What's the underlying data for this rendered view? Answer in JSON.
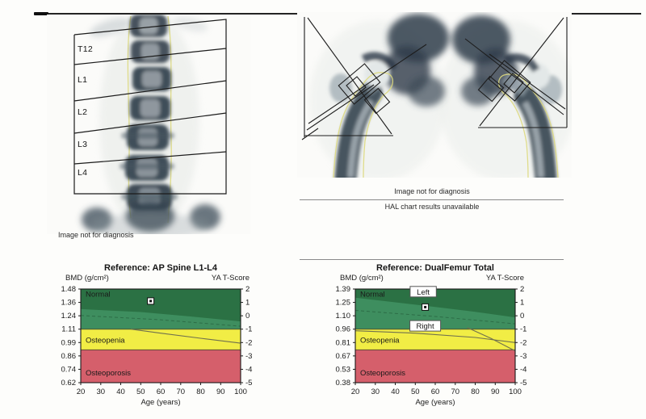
{
  "spine_panel": {
    "region_labels": [
      "T12",
      "L1",
      "L2",
      "L3",
      "L4"
    ],
    "caption": "Image not for diagnosis"
  },
  "femur_panel": {
    "caption": "Image not for diagnosis",
    "status_message": "HAL chart results unavailable"
  },
  "chart_data": [
    {
      "type": "scatter",
      "title": "Reference: AP Spine L1-L4",
      "left_axis_label": "BMD (g/cm²)",
      "right_axis_label": "YA T-Score",
      "xlabel": "Age (years)",
      "xlim": [
        20,
        100
      ],
      "x_ticks": [
        20,
        30,
        40,
        50,
        60,
        70,
        80,
        90,
        100
      ],
      "tscore_lim": [
        2,
        -5
      ],
      "tscore_tick_labels": [
        "2",
        "1",
        "0",
        "-1",
        "-2",
        "-3",
        "-4",
        "-5"
      ],
      "bmd_tick_labels": [
        "1.48",
        "1.36",
        "1.24",
        "1.11",
        "0.99",
        "0.86",
        "0.74",
        "0.62"
      ],
      "grid": false,
      "zones": [
        {
          "label": "Normal",
          "t_from": 2,
          "t_to": -1,
          "color": "#3e8e5f",
          "label_color": "#25503a",
          "label_t": 1.42
        },
        {
          "label": "Osteopenia",
          "t_from": -1,
          "t_to": -2.55,
          "color": "#f1ed45",
          "label_color": "#33331f",
          "label_t": -2.0
        },
        {
          "label": "Osteoporosis",
          "t_from": -2.55,
          "t_to": -5,
          "color": "#d55f6b",
          "label_color": "#8e2b38",
          "label_t": -4.45
        }
      ],
      "age_band": {
        "color": "#2b7144",
        "edge": [
          [
            20,
            0.5
          ],
          [
            50,
            0.28
          ],
          [
            75,
            -0.05
          ],
          [
            100,
            -0.42
          ]
        ]
      },
      "faint_curves": [
        [
          [
            20,
            0.02
          ],
          [
            60,
            -0.3
          ],
          [
            100,
            -0.78
          ]
        ]
      ],
      "curves": [
        [
          [
            45,
            -1.0
          ],
          [
            60,
            -1.3
          ],
          [
            80,
            -1.68
          ],
          [
            100,
            -2.05
          ]
        ]
      ],
      "points": [
        {
          "age": 55,
          "tscore": 1.1,
          "bmd": 1.37
        }
      ],
      "point_labels": []
    },
    {
      "type": "scatter",
      "title": "Reference: DualFemur Total",
      "left_axis_label": "BMD (g/cm²)",
      "right_axis_label": "YA T-Score",
      "xlabel": "Age (years)",
      "xlim": [
        20,
        100
      ],
      "x_ticks": [
        20,
        30,
        40,
        50,
        60,
        70,
        80,
        90,
        100
      ],
      "tscore_lim": [
        2,
        -5
      ],
      "tscore_tick_labels": [
        "2",
        "1",
        "0",
        "-1",
        "-2",
        "-3",
        "-4",
        "-5"
      ],
      "bmd_tick_labels": [
        "1.39",
        "1.25",
        "1.10",
        "0.96",
        "0.81",
        "0.67",
        "0.53",
        "0.38"
      ],
      "grid": false,
      "zones": [
        {
          "label": "Normal",
          "t_from": 2,
          "t_to": -1,
          "color": "#3e8e5f",
          "label_color": "#25503a",
          "label_t": 1.42
        },
        {
          "label": "Osteopenia",
          "t_from": -1,
          "t_to": -2.55,
          "color": "#f1ed45",
          "label_color": "#33331f",
          "label_t": -2.0
        },
        {
          "label": "Osteoporosis",
          "t_from": -2.55,
          "t_to": -5,
          "color": "#d55f6b",
          "label_color": "#8e2b38",
          "label_t": -4.45
        }
      ],
      "age_band": {
        "color": "#2b7144",
        "edge": [
          [
            20,
            1.35
          ],
          [
            55,
            0.75
          ],
          [
            80,
            0.3
          ],
          [
            100,
            -0.12
          ]
        ]
      },
      "faint_curves": [
        [
          [
            20,
            0.4
          ],
          [
            60,
            -0.05
          ],
          [
            100,
            -0.6
          ]
        ]
      ],
      "curves": [
        [
          [
            20,
            -1.12
          ],
          [
            50,
            -1.3
          ],
          [
            80,
            -1.62
          ],
          [
            100,
            -2.0
          ]
        ],
        [
          [
            76,
            -0.88
          ],
          [
            88,
            -1.7
          ],
          [
            100,
            -2.62
          ]
        ]
      ],
      "points": [
        {
          "age": 55,
          "tscore": 0.65,
          "bmd": 1.2
        }
      ],
      "point_labels": [
        {
          "text": "Left",
          "age": 54,
          "tscore": 1.8
        },
        {
          "text": "Right",
          "age": 55,
          "tscore": -0.75
        }
      ]
    }
  ]
}
